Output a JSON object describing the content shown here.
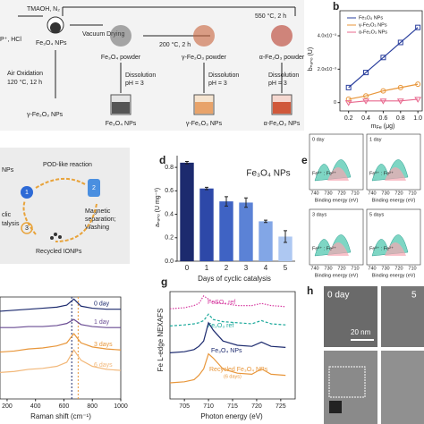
{
  "panel_a": {
    "reagents": "P⁺, HCl",
    "step1": "TMAOH, N₂",
    "step2": "Vacuum Drying",
    "step3": "200 °C, 2 h",
    "step4": "550 °C, 2 h",
    "np": "Fe₃O₄ NPs",
    "powders": [
      "Fe₃O₄ powder",
      "γ-Fe₂O₃ powder",
      "α-Fe₂O₃ powder"
    ],
    "air_oxidation": "Air Oxidation",
    "air_condition": "120 °C, 12 h",
    "dissolution": [
      "Dissolution",
      "Dissolution",
      "Dissolution"
    ],
    "ph": [
      "pH = 3",
      "pH = 3",
      "pH = 3"
    ],
    "products": [
      "γ-Fe₂O₃ NPs",
      "Fe₃O₄ NPs",
      "γ-Fe₂O₃ NPs",
      "α-Fe₂O₃ NPs"
    ]
  },
  "panel_b": {
    "label": "b",
    "type": "line",
    "y_label": "bₙₐₙₒ (U)",
    "x_label_main": "m",
    "x_label_sub": "Fe",
    "x_label_unit": " (μg)",
    "x": [
      0.2,
      0.4,
      0.6,
      0.8,
      1.0
    ],
    "xlim": [
      0.1,
      1.05
    ],
    "ylim": [
      -0.0005,
      0.0055
    ],
    "xticks": [
      0.2,
      0.4,
      0.6,
      0.8,
      {
        "value": 1,
        "label": "1.0"
      }
    ],
    "yticks": [
      0,
      {
        "value": 0.002,
        "label": "2.0x10⁻³"
      },
      {
        "value": 0.004,
        "label": "4.0x10⁻³"
      }
    ],
    "series": [
      {
        "name": "Fe₃O₄ NPs",
        "color": "#2a3f9d",
        "marker": "square",
        "values": [
          0.0009,
          0.0018,
          0.0027,
          0.0036,
          0.0045
        ]
      },
      {
        "name": "γ-Fe₂O₃ NPs",
        "color": "#e8963a",
        "marker": "circle",
        "values": [
          0.0002,
          0.0004,
          0.0007,
          0.0009,
          0.0011
        ]
      },
      {
        "name": "α-Fe₂O₃ NPs",
        "color": "#e8688e",
        "marker": "triangle",
        "values": [
          0,
          0.0001,
          0.0001,
          0.0001,
          0.0002
        ]
      }
    ]
  },
  "panel_c": {
    "reaction": "POD-like reaction",
    "separation": [
      "Magnetic",
      "separation;",
      "Washing"
    ],
    "recycled": "Recycled IONPs",
    "catalysis": [
      "clic",
      "talysis"
    ],
    "nps": "NPs",
    "steps": [
      "1",
      "2",
      "3"
    ]
  },
  "panel_d": {
    "label": "d",
    "type": "bar",
    "title": "Fe₃O₄ NPs",
    "y_label": "aₙₐₙₒ (U mg⁻¹)",
    "x_label": "Days of cyclic catalysis",
    "categories": [
      "0",
      "1",
      "2",
      "3",
      "4",
      "5"
    ],
    "values": [
      0.84,
      0.62,
      0.51,
      0.5,
      0.34,
      0.21
    ],
    "errors": [
      0.01,
      0.01,
      0.04,
      0.04,
      0.01,
      0.05
    ],
    "colors": [
      "#1c2a6e",
      "#2d48a8",
      "#3f63c4",
      "#5b82d6",
      "#82a6e6",
      "#aec8f2"
    ],
    "ylim": [
      0,
      0.9
    ],
    "yticks": [
      {
        "value": 0,
        "label": "0.0"
      },
      0.2,
      0.4,
      0.6,
      0.8
    ]
  },
  "panel_e": {
    "label": "e",
    "days": [
      "0 day",
      "1 day",
      "3 days",
      "5 days"
    ],
    "x_label": "Binding energy (eV)",
    "ticks": [
      "740",
      "730",
      "720",
      "710"
    ],
    "ratio": "Fe³⁺ : Fe²⁺"
  },
  "panel_f": {
    "type": "line",
    "x_label": "Raman shift (cm⁻¹)",
    "xlim": [
      150,
      1000
    ],
    "ylim": [
      0,
      10
    ],
    "xticks": [
      200,
      400,
      600,
      800,
      1000
    ],
    "x": [
      150,
      250,
      350,
      450,
      550,
      620,
      670,
      720,
      800,
      900,
      1000
    ],
    "ref_lines": [
      655,
      700
    ],
    "ref_colors": [
      "#1c2a6e",
      "#e8963a"
    ],
    "series": [
      {
        "name": "0 day",
        "color": "#1c2a6e",
        "values": [
          8.6,
          8.7,
          8.8,
          8.9,
          9.0,
          9.2,
          9.8,
          9.1,
          8.9,
          8.8,
          8.8
        ]
      },
      {
        "name": "1 day",
        "color": "#6a4c93",
        "values": [
          7.0,
          7.0,
          7.1,
          7.1,
          7.2,
          7.4,
          7.8,
          7.3,
          7.1,
          7.0,
          7.0
        ]
      },
      {
        "name": "3 days",
        "color": "#e8963a",
        "values": [
          4.6,
          4.7,
          4.9,
          5.0,
          5.2,
          5.5,
          6.4,
          5.5,
          5.1,
          4.9,
          4.8
        ]
      },
      {
        "name": "6 days",
        "color": "#f2b87a",
        "values": [
          2.6,
          2.7,
          2.9,
          3.0,
          3.2,
          3.6,
          4.8,
          3.8,
          3.2,
          2.9,
          2.8
        ]
      }
    ]
  },
  "panel_g": {
    "label": "g",
    "type": "line",
    "y_label": "Fe L-edge NEXAFS",
    "x_label": "Photon energy (eV)",
    "xlim": [
      702,
      728
    ],
    "ylim": [
      0,
      10
    ],
    "xticks": [
      705,
      710,
      715,
      720,
      725
    ],
    "x": [
      702,
      705,
      707,
      708,
      709,
      710,
      711,
      713,
      716,
      719,
      721,
      723,
      726
    ],
    "note": "(6 days)",
    "series": [
      {
        "name": "FeSO₄ ref",
        "color": "#d63ba0",
        "dash": "1.5 1.5",
        "values": [
          8.4,
          8.5,
          8.7,
          8.9,
          9.6,
          9.3,
          9.0,
          8.9,
          8.7,
          8.7,
          8.9,
          8.7,
          8.6
        ]
      },
      {
        "name": "Fe₂O₃ ref",
        "color": "#1aa89a",
        "dash": "3 2",
        "values": [
          6.8,
          6.9,
          7.0,
          7.1,
          7.3,
          7.9,
          7.4,
          7.2,
          7.1,
          7.0,
          7.3,
          7.0,
          6.9
        ]
      },
      {
        "name": "Fe₃O₄ NPs",
        "color": "#1c2a6e",
        "dash": "none",
        "values": [
          4.3,
          4.4,
          4.6,
          4.9,
          5.4,
          7.1,
          6.4,
          5.4,
          5.0,
          4.9,
          5.3,
          4.9,
          4.8
        ]
      },
      {
        "name": "Recycled Fe₃O₄ NPs",
        "color": "#e8963a",
        "dash": "none",
        "values": [
          1.5,
          1.6,
          1.8,
          2.2,
          2.8,
          4.2,
          3.8,
          2.8,
          2.4,
          2.3,
          2.8,
          2.3,
          2.2
        ]
      }
    ]
  },
  "panel_h": {
    "label": "h",
    "day0": "0 day",
    "day5": "5",
    "scale": "20 nm"
  }
}
